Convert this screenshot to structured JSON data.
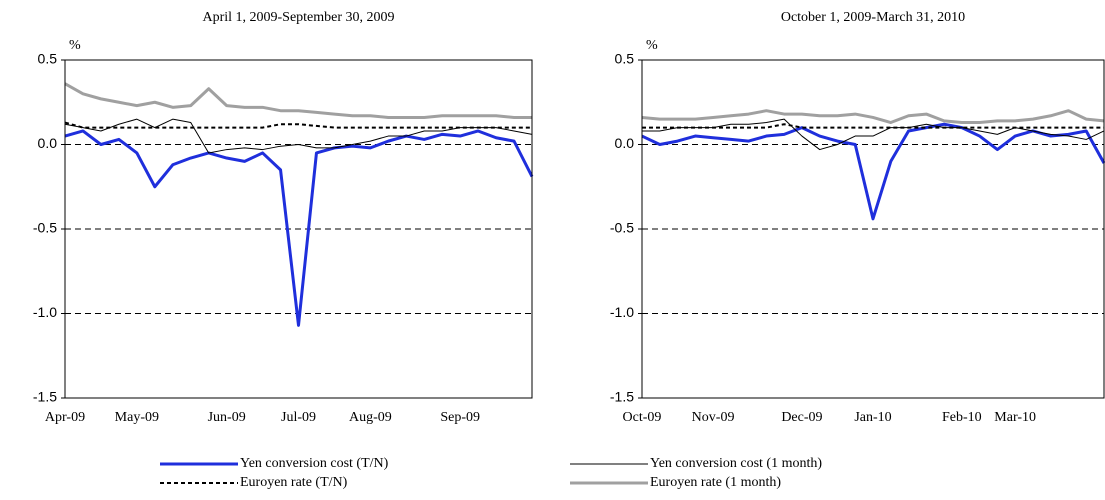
{
  "chart_data": [
    {
      "type": "line",
      "title": "April 1, 2009-September 30, 2009",
      "y_label": "%",
      "categories": [
        "Apr-09",
        null,
        null,
        null,
        "May-09",
        null,
        null,
        null,
        null,
        "Jun-09",
        null,
        null,
        null,
        "Jul-09",
        null,
        null,
        null,
        "Aug-09",
        null,
        null,
        null,
        null,
        "Sep-09",
        null,
        null,
        null,
        null
      ],
      "ylim": [
        -1.5,
        0.5
      ],
      "yticks": [
        0.5,
        {
          "value": 0,
          "label": "0.0"
        },
        -0.5,
        {
          "value": -1,
          "label": "-1.0"
        },
        -1.5
      ],
      "grid": true,
      "series": [
        {
          "name": "Yen conversion cost (T/N)",
          "color": "#1f2fdc",
          "linestyle": "solid",
          "values": [
            0.05,
            0.08,
            0.0,
            0.03,
            -0.05,
            -0.25,
            -0.12,
            -0.08,
            -0.05,
            -0.08,
            -0.1,
            -0.05,
            -0.15,
            -1.07,
            -0.05,
            -0.02,
            -0.01,
            -0.02,
            0.02,
            0.05,
            0.03,
            0.06,
            0.05,
            0.08,
            0.04,
            0.02,
            -0.19
          ]
        },
        {
          "name": "Yen conversion cost (1 month)",
          "color": "#000000",
          "linestyle": "solid",
          "values": [
            0.12,
            0.1,
            0.08,
            0.12,
            0.15,
            0.1,
            0.15,
            0.13,
            -0.05,
            -0.03,
            -0.02,
            -0.03,
            -0.01,
            0.0,
            -0.02,
            -0.02,
            0.0,
            0.02,
            0.05,
            0.05,
            0.08,
            0.08,
            0.1,
            0.1,
            0.1,
            0.08,
            0.06
          ]
        },
        {
          "name": "Euroyen rate (T/N)",
          "color": "#000000",
          "linestyle": "dotted",
          "values": [
            0.13,
            0.1,
            0.1,
            0.1,
            0.1,
            0.1,
            0.1,
            0.1,
            0.1,
            0.1,
            0.1,
            0.1,
            0.12,
            0.12,
            0.11,
            0.1,
            0.1,
            0.1,
            0.1,
            0.1,
            0.1,
            0.1,
            0.1,
            0.1,
            0.1,
            0.1,
            0.1
          ]
        },
        {
          "name": "Euroyen rate (1 month)",
          "color": "#a0a0a0",
          "linestyle": "solid",
          "values": [
            0.36,
            0.3,
            0.27,
            0.25,
            0.23,
            0.25,
            0.22,
            0.23,
            0.33,
            0.23,
            0.22,
            0.22,
            0.2,
            0.2,
            0.19,
            0.18,
            0.17,
            0.17,
            0.16,
            0.16,
            0.16,
            0.17,
            0.17,
            0.17,
            0.17,
            0.16,
            0.16
          ]
        }
      ]
    },
    {
      "type": "line",
      "title": "October 1, 2009-March 31, 2010",
      "y_label": "%",
      "categories": [
        "Oct-09",
        null,
        null,
        null,
        "Nov-09",
        null,
        null,
        null,
        null,
        "Dec-09",
        null,
        null,
        null,
        "Jan-10",
        null,
        null,
        null,
        null,
        "Feb-10",
        null,
        null,
        "Mar-10",
        null,
        null,
        null,
        null,
        null
      ],
      "ylim": [
        -1.5,
        0.5
      ],
      "yticks": [
        0.5,
        {
          "value": 0,
          "label": "0.0"
        },
        -0.5,
        {
          "value": -1,
          "label": "-1.0"
        },
        -1.5
      ],
      "grid": true,
      "series": [
        {
          "color": "#1f2fdc",
          "linestyle": "solid",
          "values": [
            0.05,
            0.0,
            0.02,
            0.05,
            0.04,
            0.03,
            0.02,
            0.05,
            0.06,
            0.1,
            0.05,
            0.02,
            0.0,
            -0.44,
            -0.1,
            0.08,
            0.1,
            0.12,
            0.1,
            0.05,
            -0.03,
            0.05,
            0.08,
            0.05,
            0.06,
            0.08,
            -0.11
          ]
        },
        {
          "color": "#000000",
          "linestyle": "solid",
          "values": [
            0.08,
            0.08,
            0.1,
            0.1,
            0.1,
            0.12,
            0.12,
            0.13,
            0.15,
            0.05,
            -0.03,
            0.0,
            0.05,
            0.05,
            0.1,
            0.1,
            0.12,
            0.1,
            0.1,
            0.08,
            0.06,
            0.1,
            0.08,
            0.06,
            0.05,
            0.03,
            0.08
          ]
        },
        {
          "color": "#000000",
          "linestyle": "dotted",
          "values": [
            0.1,
            0.1,
            0.1,
            0.1,
            0.1,
            0.1,
            0.1,
            0.1,
            0.12,
            0.1,
            0.1,
            0.1,
            0.1,
            0.1,
            0.1,
            0.1,
            0.1,
            0.1,
            0.1,
            0.1,
            0.1,
            0.1,
            0.1,
            0.1,
            0.1,
            0.1,
            0.1
          ]
        },
        {
          "color": "#a0a0a0",
          "linestyle": "solid",
          "values": [
            0.16,
            0.15,
            0.15,
            0.15,
            0.16,
            0.17,
            0.18,
            0.2,
            0.18,
            0.18,
            0.17,
            0.17,
            0.18,
            0.16,
            0.13,
            0.17,
            0.18,
            0.14,
            0.13,
            0.13,
            0.14,
            0.14,
            0.15,
            0.17,
            0.2,
            0.15,
            0.14
          ]
        }
      ]
    }
  ]
}
